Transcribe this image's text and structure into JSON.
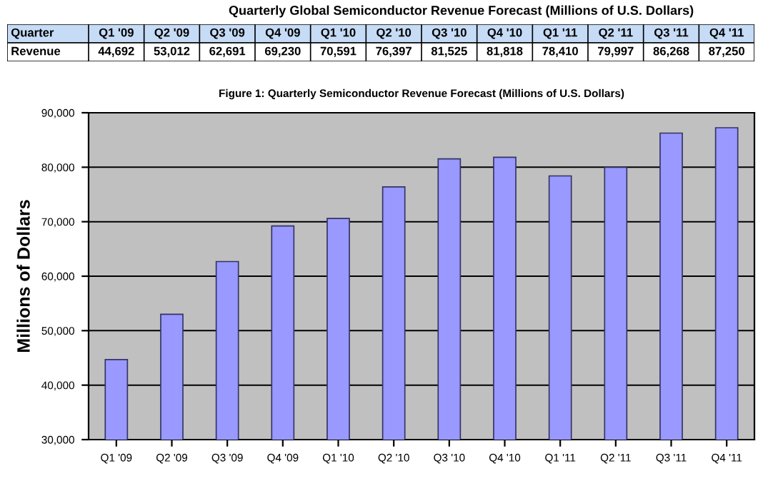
{
  "chart_data": {
    "type": "bar",
    "title": "Quarterly Global Semiconductor Revenue Forecast (Millions of U.S. Dollars)",
    "subtitle": "Figure 1: Quarterly Semiconductor Revenue Forecast (Millions of U.S. Dollars)",
    "ylabel": "Millions of Dollars",
    "annotations": [
      "Quarter",
      "Revenue"
    ],
    "categories": [
      "Q1 '09",
      "Q2 '09",
      "Q3 '09",
      "Q4 '09",
      "Q1 '10",
      "Q2 '10",
      "Q3 '10",
      "Q4 '10",
      "Q1 '11",
      "Q2 '11",
      "Q3 '11",
      "Q4 '11"
    ],
    "values": [
      44692,
      53012,
      62691,
      69230,
      70591,
      76397,
      81525,
      81818,
      78410,
      79997,
      86268,
      87250
    ],
    "color": "#9999ff",
    "value_labels": [
      "44,692",
      "53,012",
      "62,691",
      "69,230",
      "70,591",
      "76,397",
      "81,525",
      "81,818",
      "78,410",
      "79,997",
      "86,268",
      "87,250"
    ],
    "ylim": [
      30000,
      90000
    ],
    "yticks": [
      {
        "value": 30000,
        "label": "30,000"
      },
      {
        "value": 40000,
        "label": "40,000"
      },
      {
        "value": 50000,
        "label": "50,000"
      },
      {
        "value": 60000,
        "label": "60,000"
      },
      {
        "value": 70000,
        "label": "70,000"
      },
      {
        "value": 80000,
        "label": "80,000"
      },
      {
        "value": 90000,
        "label": "90,000"
      }
    ],
    "grid": "y",
    "legend": false
  }
}
